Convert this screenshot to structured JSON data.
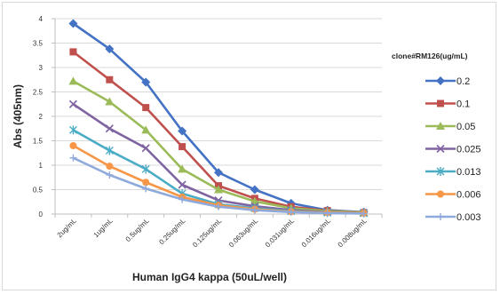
{
  "chart_data": {
    "type": "line",
    "title": "",
    "xlabel": "Human IgG4 kappa (50uL/well)",
    "ylabel": "Abs (405nm)",
    "categories": [
      "2ug/mL",
      "1ug/mL",
      "0.5ug/mL",
      "0.25ug/mL",
      "0.125ug/mL",
      "0.063ug/mL",
      "0.031ug/mL",
      "0.016ug/mL",
      "0.008ug/mL"
    ],
    "ylim": [
      0,
      4
    ],
    "yticks": [
      "0",
      "0.5",
      "1",
      "1.5",
      "2",
      "2.5",
      "3",
      "3.5",
      "4"
    ],
    "grid": true,
    "legend_title": "clone#RM126(ug/mL)",
    "legend_position": "right",
    "series": [
      {
        "name": "0.2",
        "color": "#4472C4",
        "marker": "diamond",
        "values": [
          3.9,
          3.38,
          2.7,
          1.7,
          0.85,
          0.5,
          0.22,
          0.08,
          0.04
        ]
      },
      {
        "name": "0.1",
        "color": "#C0504D",
        "marker": "square",
        "values": [
          3.32,
          2.75,
          2.18,
          1.38,
          0.58,
          0.32,
          0.15,
          0.07,
          0.03
        ]
      },
      {
        "name": "0.05",
        "color": "#9BBB59",
        "marker": "triangle",
        "values": [
          2.72,
          2.3,
          1.72,
          0.92,
          0.5,
          0.26,
          0.12,
          0.06,
          0.03
        ]
      },
      {
        "name": "0.025",
        "color": "#8064A2",
        "marker": "x",
        "values": [
          2.25,
          1.75,
          1.35,
          0.6,
          0.28,
          0.16,
          0.08,
          0.04,
          0.02
        ]
      },
      {
        "name": "0.013",
        "color": "#4BACC6",
        "marker": "star",
        "values": [
          1.72,
          1.3,
          0.92,
          0.42,
          0.2,
          0.12,
          0.06,
          0.03,
          0.02
        ]
      },
      {
        "name": "0.006",
        "color": "#F79646",
        "marker": "circle",
        "values": [
          1.4,
          0.98,
          0.65,
          0.35,
          0.18,
          0.1,
          0.05,
          0.03,
          0.02
        ]
      },
      {
        "name": "0.003",
        "color": "#8EA9DB",
        "marker": "plus",
        "values": [
          1.15,
          0.8,
          0.52,
          0.3,
          0.15,
          0.08,
          0.04,
          0.02,
          0.01
        ]
      }
    ]
  }
}
